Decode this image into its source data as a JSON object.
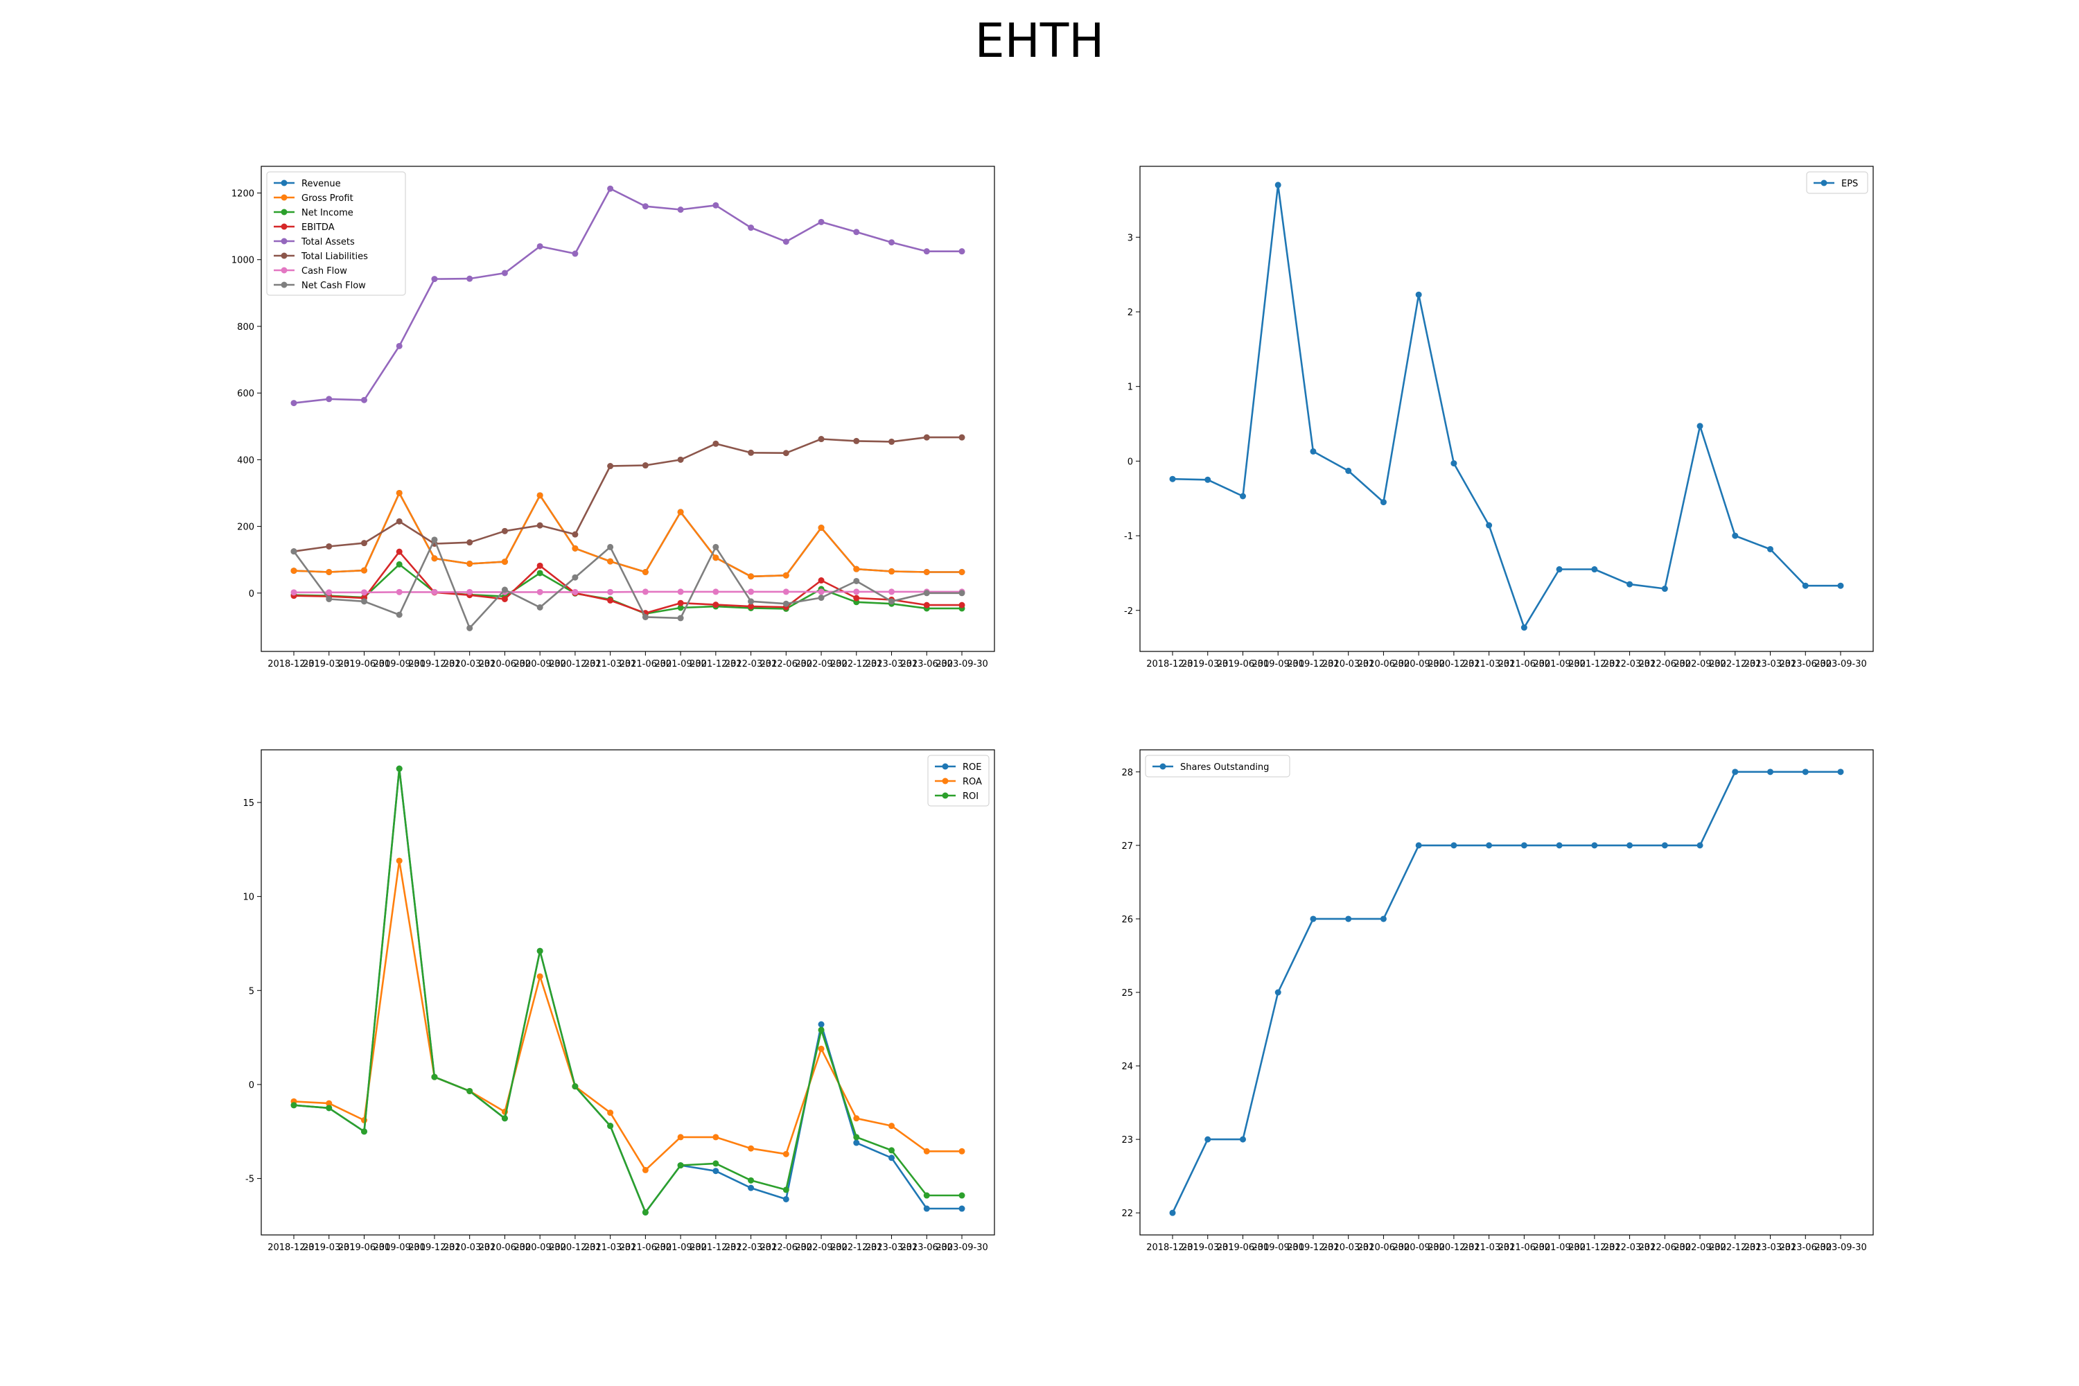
{
  "title": "EHTH",
  "colors": {
    "blue": "#1f77b4",
    "orange": "#ff7f0e",
    "green": "#2ca02c",
    "red": "#d62728",
    "purple": "#9467bd",
    "brown": "#8c564b",
    "pink": "#e377c2",
    "gray": "#7f7f7f"
  },
  "dates": [
    "2018-12-31",
    "2019-03-31",
    "2019-06-30",
    "2019-09-30",
    "2019-12-31",
    "2020-03-31",
    "2020-06-30",
    "2020-09-30",
    "2020-12-31",
    "2021-03-31",
    "2021-06-30",
    "2021-09-30",
    "2021-12-31",
    "2022-03-31",
    "2022-06-30",
    "2022-09-30",
    "2022-12-31",
    "2023-03-31",
    "2023-06-30",
    "2023-09-30"
  ],
  "chart_data": [
    {
      "type": "line",
      "ylim": [
        -175,
        1280
      ],
      "yticks": [
        0,
        200,
        400,
        600,
        800,
        1000,
        1200
      ],
      "legend": "top-left",
      "series": [
        {
          "name": "Revenue",
          "color": "#1f77b4",
          "values": [
            67,
            63,
            68,
            300,
            104,
            88,
            94,
            293,
            134,
            95,
            63,
            243,
            106,
            50,
            53,
            196,
            72,
            65,
            63,
            63
          ]
        },
        {
          "name": "Gross Profit",
          "color": "#ff7f0e",
          "values": [
            67,
            63,
            68,
            300,
            104,
            88,
            94,
            293,
            134,
            95,
            63,
            243,
            106,
            50,
            53,
            196,
            72,
            65,
            63,
            63
          ]
        },
        {
          "name": "Net Income",
          "color": "#2ca02c",
          "values": [
            -6,
            -8,
            -13,
            86,
            3,
            -5,
            -10,
            60,
            -1,
            -19,
            -62,
            -44,
            -40,
            -45,
            -47,
            12,
            -27,
            -32,
            -46,
            -46
          ]
        },
        {
          "name": "EBITDA",
          "color": "#d62728",
          "values": [
            -8,
            -10,
            -15,
            124,
            2,
            -6,
            -18,
            82,
            0,
            -22,
            -60,
            -30,
            -35,
            -40,
            -42,
            38,
            -15,
            -20,
            -36,
            -36
          ]
        },
        {
          "name": "Total Assets",
          "color": "#9467bd",
          "values": [
            570,
            582,
            579,
            741,
            942,
            943,
            960,
            1040,
            1018,
            1213,
            1160,
            1150,
            1163,
            1096,
            1054,
            1113,
            1083,
            1052,
            1025,
            1025
          ]
        },
        {
          "name": "Total Liabilities",
          "color": "#8c564b",
          "values": [
            125,
            140,
            150,
            215,
            148,
            152,
            186,
            203,
            176,
            381,
            383,
            400,
            448,
            421,
            420,
            462,
            456,
            454,
            467,
            467
          ]
        },
        {
          "name": "Cash Flow",
          "color": "#e377c2",
          "values": [
            2,
            2,
            2,
            3,
            3,
            3,
            3,
            3,
            3,
            3,
            4,
            4,
            4,
            4,
            4,
            4,
            4,
            4,
            4,
            4
          ]
        },
        {
          "name": "Net Cash Flow",
          "color": "#7f7f7f",
          "values": [
            125,
            -18,
            -25,
            -65,
            160,
            -105,
            10,
            -43,
            47,
            138,
            -72,
            -75,
            138,
            -25,
            -32,
            -14,
            36,
            -25,
            0,
            0
          ]
        }
      ]
    },
    {
      "type": "line",
      "ylim": [
        -2.55,
        3.95
      ],
      "yticks": [
        -2,
        -1,
        0,
        1,
        2,
        3
      ],
      "legend": "top-right",
      "series": [
        {
          "name": "EPS",
          "color": "#1f77b4",
          "values": [
            -0.24,
            -0.25,
            -0.47,
            3.7,
            0.13,
            -0.13,
            -0.55,
            2.23,
            -0.03,
            -0.86,
            -2.23,
            -1.45,
            -1.45,
            -1.65,
            -1.71,
            0.47,
            -1.0,
            -1.18,
            -1.67,
            -1.67
          ]
        }
      ]
    },
    {
      "type": "line",
      "ylim": [
        -8.0,
        17.8
      ],
      "yticks": [
        -5,
        0,
        5,
        10,
        15
      ],
      "legend": "top-right",
      "series": [
        {
          "name": "ROE",
          "color": "#1f77b4",
          "values": [
            -1.1,
            -1.25,
            -2.5,
            16.8,
            0.4,
            -0.35,
            -1.8,
            7.1,
            -0.1,
            -2.2,
            -6.8,
            -4.3,
            -4.6,
            -5.5,
            -6.1,
            3.2,
            -3.1,
            -3.9,
            -6.6,
            -6.6
          ]
        },
        {
          "name": "ROA",
          "color": "#ff7f0e",
          "values": [
            -0.9,
            -1.0,
            -1.9,
            11.9,
            0.4,
            -0.35,
            -1.45,
            5.75,
            -0.1,
            -1.5,
            -4.55,
            -2.8,
            -2.8,
            -3.4,
            -3.7,
            1.9,
            -1.8,
            -2.2,
            -3.55,
            -3.55
          ]
        },
        {
          "name": "ROI",
          "color": "#2ca02c",
          "values": [
            -1.1,
            -1.25,
            -2.5,
            16.8,
            0.4,
            -0.35,
            -1.8,
            7.1,
            -0.1,
            -2.2,
            -6.8,
            -4.3,
            -4.2,
            -5.1,
            -5.6,
            2.9,
            -2.8,
            -3.5,
            -5.9,
            -5.9
          ]
        }
      ]
    },
    {
      "type": "line",
      "ylim": [
        21.7,
        28.3
      ],
      "yticks": [
        22,
        23,
        24,
        25,
        26,
        27,
        28
      ],
      "legend": "top-left",
      "series": [
        {
          "name": "Shares Outstanding",
          "color": "#1f77b4",
          "values": [
            22,
            23,
            23,
            25,
            26,
            26,
            26,
            27,
            27,
            27,
            27,
            27,
            27,
            27,
            27,
            27,
            28,
            28,
            28,
            28
          ]
        }
      ]
    }
  ]
}
